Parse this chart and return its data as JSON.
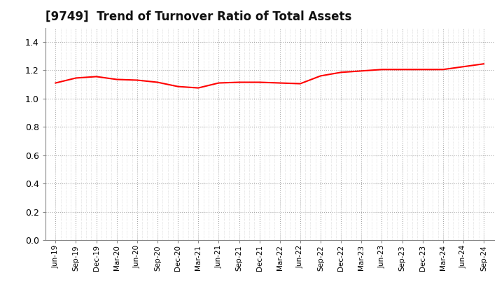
{
  "title": "[9749]  Trend of Turnover Ratio of Total Assets",
  "title_fontsize": 12,
  "line_color": "#FF0000",
  "line_width": 1.5,
  "background_color": "#FFFFFF",
  "grid_color": "#AAAAAA",
  "ylim": [
    0.0,
    1.5
  ],
  "yticks": [
    0.0,
    0.2,
    0.4,
    0.6,
    0.8,
    1.0,
    1.2,
    1.4
  ],
  "x_labels": [
    "Jun-19",
    "Sep-19",
    "Dec-19",
    "Mar-20",
    "Jun-20",
    "Sep-20",
    "Dec-20",
    "Mar-21",
    "Jun-21",
    "Sep-21",
    "Dec-21",
    "Mar-22",
    "Jun-22",
    "Sep-22",
    "Dec-22",
    "Mar-23",
    "Jun-23",
    "Sep-23",
    "Dec-23",
    "Mar-24",
    "Jun-24",
    "Sep-24"
  ],
  "y_values": [
    1.11,
    1.145,
    1.155,
    1.135,
    1.13,
    1.115,
    1.085,
    1.075,
    1.11,
    1.115,
    1.115,
    1.11,
    1.105,
    1.16,
    1.185,
    1.195,
    1.205,
    1.205,
    1.205,
    1.205,
    1.225,
    1.245
  ]
}
